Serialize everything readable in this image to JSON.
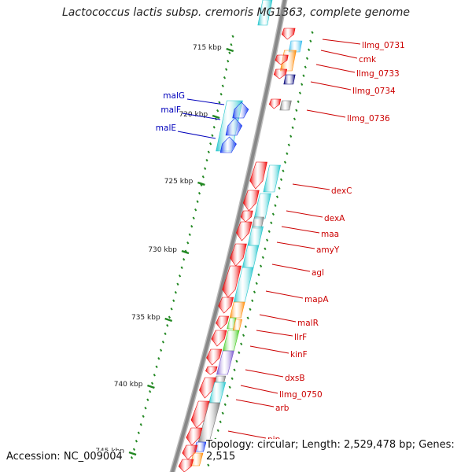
{
  "title": "Lactococcus lactis subsp. cremoris MG1363, complete genome",
  "accession": "Accession: NC_009004",
  "topology": "Topology: circular; Length: 2,529,478 bp; Genes: 2,515",
  "colors": {
    "backbone": "#888888",
    "red": "#ee0000",
    "cyan": "#22c5cc",
    "blue": "#1133ee",
    "orange": "#ff8800",
    "green": "#44cc22",
    "gray": "#777777",
    "navy": "#000077",
    "purple": "#7755cc",
    "sky": "#33bbee",
    "ticks": "#228822",
    "red_label": "#cc0000",
    "blue_label": "#0000bb"
  },
  "scale": {
    "ticks": [
      {
        "label": "715 kbp"
      },
      {
        "label": "720 kbp"
      },
      {
        "label": "725 kbp"
      },
      {
        "label": "730 kbp"
      },
      {
        "label": "735 kbp"
      },
      {
        "label": "740 kbp"
      },
      {
        "label": "745 kbp"
      }
    ]
  },
  "genes": [
    {
      "name": "llmg_0731",
      "color": "red"
    },
    {
      "name": "cmk",
      "color": "red"
    },
    {
      "name": "llmg_0733",
      "color": "red"
    },
    {
      "name": "llmg_0734",
      "color": "red"
    },
    {
      "name": "llmg_0736",
      "color": "red"
    },
    {
      "name": "malG",
      "color": "blue"
    },
    {
      "name": "malF",
      "color": "blue"
    },
    {
      "name": "malE",
      "color": "blue"
    },
    {
      "name": "dexC",
      "color": "red"
    },
    {
      "name": "dexA",
      "color": "red"
    },
    {
      "name": "maa",
      "color": "red"
    },
    {
      "name": "amyY",
      "color": "red"
    },
    {
      "name": "agl",
      "color": "red"
    },
    {
      "name": "mapA",
      "color": "red"
    },
    {
      "name": "malR",
      "color": "red"
    },
    {
      "name": "llrF",
      "color": "red"
    },
    {
      "name": "kinF",
      "color": "red"
    },
    {
      "name": "dxsB",
      "color": "red"
    },
    {
      "name": "llmg_0750",
      "color": "red"
    },
    {
      "name": "arb",
      "color": "red"
    },
    {
      "name": "pip",
      "color": "red"
    }
  ]
}
